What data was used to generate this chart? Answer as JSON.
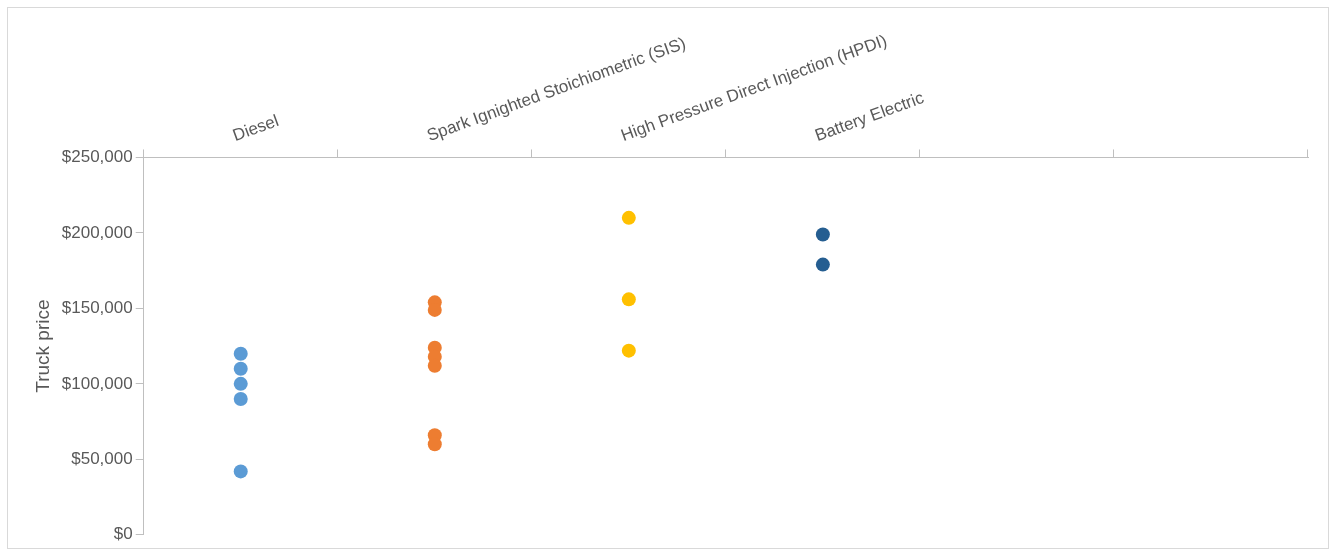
{
  "chart_data": {
    "type": "scatter",
    "ylabel": "Truck price",
    "categories": [
      "Diesel",
      "Spark Ignighted Stoichiometric (SIS)",
      "High Pressure Direct Injection (HPDI)",
      "Battery Electric",
      null,
      null
    ],
    "ylim": [
      0,
      250000
    ],
    "yticks": [
      {
        "value": 0,
        "label": "$0"
      },
      {
        "value": 50000,
        "label": "$50,000"
      },
      {
        "value": 100000,
        "label": "$100,000"
      },
      {
        "value": 150000,
        "label": "$150,000"
      },
      {
        "value": 200000,
        "label": "$200,000"
      },
      {
        "value": 250000,
        "label": "$250,000"
      }
    ],
    "grid": false,
    "legend": false,
    "marker": "circle",
    "series": [
      {
        "color": "#5b9bd5",
        "x": [
          "Diesel",
          "Diesel",
          "Diesel",
          "Diesel",
          "Diesel"
        ],
        "values": [
          120000,
          110000,
          100000,
          90000,
          42000
        ]
      },
      {
        "color": "#ed7d31",
        "x": [
          "Spark Ignighted Stoichiometric (SIS)",
          "Spark Ignighted Stoichiometric (SIS)",
          "Spark Ignighted Stoichiometric (SIS)",
          "Spark Ignighted Stoichiometric (SIS)",
          "Spark Ignighted Stoichiometric (SIS)",
          "Spark Ignighted Stoichiometric (SIS)",
          "Spark Ignighted Stoichiometric (SIS)"
        ],
        "values": [
          154000,
          149000,
          124000,
          118000,
          112000,
          66000,
          60000
        ]
      },
      {
        "color": "#ffc000",
        "x": [
          "High Pressure Direct Injection (HPDI)",
          "High Pressure Direct Injection (HPDI)",
          "High Pressure Direct Injection (HPDI)"
        ],
        "values": [
          210000,
          156000,
          122000
        ]
      },
      {
        "color": "#255e91",
        "x": [
          "Battery Electric",
          "Battery Electric"
        ],
        "values": [
          199000,
          179000
        ]
      }
    ]
  }
}
